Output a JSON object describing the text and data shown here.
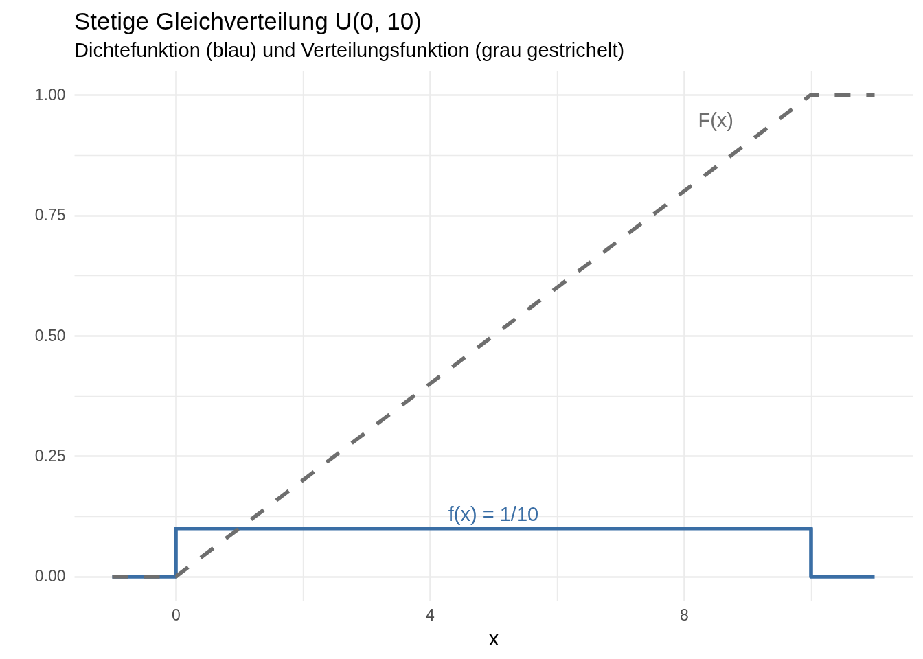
{
  "chart_data": {
    "type": "line",
    "title": "Stetige Gleichverteilung U(0, 10)",
    "subtitle": "Dichtefunktion (blau) und Verteilungsfunktion (grau gestrichelt)",
    "xlabel": "x",
    "series": [
      {
        "name": "f(x) = 1/10",
        "color": "#3a6ea5",
        "line_style": "solid",
        "x": [
          -1,
          0,
          0,
          10,
          10,
          11
        ],
        "values": [
          0,
          0,
          0.1,
          0.1,
          0,
          0
        ]
      },
      {
        "name": "F(x)",
        "color": "#6e6e6e",
        "line_style": "dashed",
        "x": [
          -1,
          0,
          10,
          11
        ],
        "values": [
          0,
          0,
          1,
          1
        ]
      }
    ],
    "xlim": [
      -1.6,
      11.6
    ],
    "ylim": [
      -0.05,
      1.05
    ],
    "xticks": [
      0,
      {
        "value": 2,
        "label": null
      },
      4,
      {
        "value": 6,
        "label": null
      },
      8,
      {
        "value": 10,
        "label": null
      }
    ],
    "yticks": [
      {
        "value": 0,
        "label": "0.00"
      },
      {
        "value": 0.125,
        "label": null
      },
      {
        "value": 0.25,
        "label": "0.25"
      },
      {
        "value": 0.375,
        "label": null
      },
      {
        "value": 0.5,
        "label": "0.50"
      },
      {
        "value": 0.625,
        "label": null
      },
      {
        "value": 0.75,
        "label": "0.75"
      },
      {
        "value": 0.875,
        "label": null
      },
      {
        "value": 1,
        "label": "1.00"
      }
    ],
    "grid": true
  }
}
